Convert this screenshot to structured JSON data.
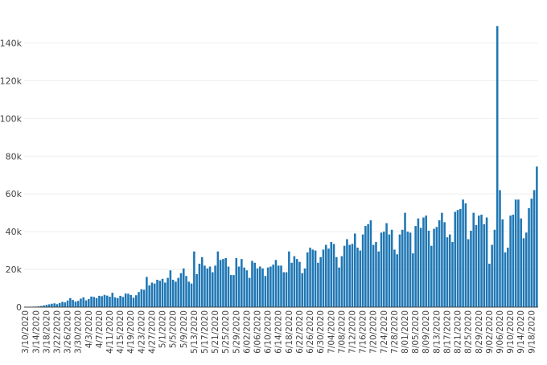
{
  "chart_data": {
    "type": "bar",
    "title": "",
    "xlabel": "",
    "ylabel": "",
    "ylim": [
      0,
      150000
    ],
    "grid": true,
    "legend": "none",
    "bar_color": "#1f77b4",
    "grid_color": "#eeeeee",
    "y_ticks": [
      {
        "value": 0,
        "label": "0"
      },
      {
        "value": 20000,
        "label": "20k"
      },
      {
        "value": 40000,
        "label": "40k"
      },
      {
        "value": 60000,
        "label": "60k"
      },
      {
        "value": 80000,
        "label": "80k"
      },
      {
        "value": 100000,
        "label": "100k"
      },
      {
        "value": 120000,
        "label": "120k"
      },
      {
        "value": 140000,
        "label": "140k"
      }
    ],
    "x_tick_labels": [
      "3/10/2020",
      "3/14/2020",
      "3/18/2020",
      "3/22/2020",
      "3/26/2020",
      "3/30/2020",
      "4/3/2020",
      "4/7/2020",
      "4/11/2020",
      "4/15/2020",
      "4/19/2020",
      "4/23/2020",
      "4/27/2020",
      "5/1/2020",
      "5/5/2020",
      "5/9/2020",
      "5/13/2020",
      "5/17/2020",
      "5/21/2020",
      "5/25/2020",
      "5/29/2020",
      "6/02/2020",
      "6/06/2020",
      "6/10/2020",
      "6/14/2020",
      "6/18/2020",
      "6/22/2020",
      "6/26/2020",
      "6/30/2020",
      "7/04/2020",
      "7/08/2020",
      "7/12/2020",
      "7/16/2020",
      "7/20/2020",
      "7/24/2020",
      "7/28/2020",
      "8/01/2020",
      "8/05/2020",
      "8/09/2020",
      "8/13/2020",
      "8/17/2020",
      "8/21/2020",
      "8/25/2020",
      "8/29/2020",
      "9/02/2020",
      "9/06/2020",
      "9/10/2020",
      "9/14/2020",
      "9/18/2020"
    ],
    "x": [
      "2020-03-10",
      "2020-03-11",
      "2020-03-12",
      "2020-03-13",
      "2020-03-14",
      "2020-03-15",
      "2020-03-16",
      "2020-03-17",
      "2020-03-18",
      "2020-03-19",
      "2020-03-20",
      "2020-03-21",
      "2020-03-22",
      "2020-03-23",
      "2020-03-24",
      "2020-03-25",
      "2020-03-26",
      "2020-03-27",
      "2020-03-28",
      "2020-03-29",
      "2020-03-30",
      "2020-03-31",
      "2020-04-01",
      "2020-04-02",
      "2020-04-03",
      "2020-04-04",
      "2020-04-05",
      "2020-04-06",
      "2020-04-07",
      "2020-04-08",
      "2020-04-09",
      "2020-04-10",
      "2020-04-11",
      "2020-04-12",
      "2020-04-13",
      "2020-04-14",
      "2020-04-15",
      "2020-04-16",
      "2020-04-17",
      "2020-04-18",
      "2020-04-19",
      "2020-04-20",
      "2020-04-21",
      "2020-04-22",
      "2020-04-23",
      "2020-04-24",
      "2020-04-25",
      "2020-04-26",
      "2020-04-27",
      "2020-04-28",
      "2020-04-29",
      "2020-04-30",
      "2020-05-01",
      "2020-05-02",
      "2020-05-03",
      "2020-05-04",
      "2020-05-05",
      "2020-05-06",
      "2020-05-07",
      "2020-05-08",
      "2020-05-09",
      "2020-05-10",
      "2020-05-11",
      "2020-05-12",
      "2020-05-13",
      "2020-05-14",
      "2020-05-15",
      "2020-05-16",
      "2020-05-17",
      "2020-05-18",
      "2020-05-19",
      "2020-05-20",
      "2020-05-21",
      "2020-05-22",
      "2020-05-23",
      "2020-05-24",
      "2020-05-25",
      "2020-05-26",
      "2020-05-27",
      "2020-05-28",
      "2020-05-29",
      "2020-05-30",
      "2020-05-31",
      "2020-06-01",
      "2020-06-02",
      "2020-06-03",
      "2020-06-04",
      "2020-06-05",
      "2020-06-06",
      "2020-06-07",
      "2020-06-08",
      "2020-06-09",
      "2020-06-10",
      "2020-06-11",
      "2020-06-12",
      "2020-06-13",
      "2020-06-14",
      "2020-06-15",
      "2020-06-16",
      "2020-06-17",
      "2020-06-18",
      "2020-06-19",
      "2020-06-20",
      "2020-06-21",
      "2020-06-22",
      "2020-06-23",
      "2020-06-24",
      "2020-06-25",
      "2020-06-26",
      "2020-06-27",
      "2020-06-28",
      "2020-06-29",
      "2020-06-30",
      "2020-07-01",
      "2020-07-02",
      "2020-07-03",
      "2020-07-04",
      "2020-07-05",
      "2020-07-06",
      "2020-07-07",
      "2020-07-08",
      "2020-07-09",
      "2020-07-10",
      "2020-07-11",
      "2020-07-12",
      "2020-07-13",
      "2020-07-14",
      "2020-07-15",
      "2020-07-16",
      "2020-07-17",
      "2020-07-18",
      "2020-07-19",
      "2020-07-20",
      "2020-07-21",
      "2020-07-22",
      "2020-07-23",
      "2020-07-24",
      "2020-07-25",
      "2020-07-26",
      "2020-07-27",
      "2020-07-28",
      "2020-07-29",
      "2020-07-30",
      "2020-07-31",
      "2020-08-01",
      "2020-08-02",
      "2020-08-03",
      "2020-08-04",
      "2020-08-05",
      "2020-08-06",
      "2020-08-07",
      "2020-08-08",
      "2020-08-09",
      "2020-08-10",
      "2020-08-11",
      "2020-08-12",
      "2020-08-13",
      "2020-08-14",
      "2020-08-15",
      "2020-08-16",
      "2020-08-17",
      "2020-08-18",
      "2020-08-19",
      "2020-08-20",
      "2020-08-21",
      "2020-08-22",
      "2020-08-23",
      "2020-08-24",
      "2020-08-25",
      "2020-08-26",
      "2020-08-27",
      "2020-08-28",
      "2020-08-29",
      "2020-08-30",
      "2020-08-31",
      "2020-09-01",
      "2020-09-02",
      "2020-09-03",
      "2020-09-04",
      "2020-09-05",
      "2020-09-06",
      "2020-09-07",
      "2020-09-08",
      "2020-09-09",
      "2020-09-10",
      "2020-09-11",
      "2020-09-12",
      "2020-09-13",
      "2020-09-14",
      "2020-09-15",
      "2020-09-16",
      "2020-09-17",
      "2020-09-18",
      "2020-09-19",
      "2020-09-20"
    ],
    "values": [
      100,
      150,
      200,
      250,
      300,
      400,
      600,
      900,
      1200,
      1500,
      1800,
      2000,
      1600,
      2200,
      2800,
      2500,
      3500,
      4800,
      3800,
      2900,
      3300,
      4500,
      5200,
      3600,
      4300,
      5600,
      5400,
      4800,
      6000,
      5800,
      6500,
      6100,
      5500,
      7600,
      5200,
      4800,
      6000,
      5400,
      7200,
      7100,
      6400,
      5000,
      6300,
      8000,
      9500,
      9200,
      16000,
      11500,
      13000,
      12500,
      14500,
      14000,
      15000,
      13000,
      15500,
      19500,
      14500,
      13500,
      15500,
      18000,
      20500,
      16500,
      13500,
      12500,
      29500,
      17500,
      23000,
      26500,
      22000,
      20500,
      21500,
      18500,
      22000,
      29500,
      25000,
      25500,
      26000,
      21500,
      17000,
      17000,
      26000,
      21500,
      25500,
      21000,
      19500,
      15500,
      24500,
      23500,
      20500,
      21500,
      20500,
      16500,
      21000,
      21500,
      22500,
      25000,
      22000,
      22000,
      18500,
      18500,
      29500,
      23500,
      27000,
      25500,
      24000,
      18000,
      20500,
      29000,
      31500,
      30500,
      30000,
      23500,
      26500,
      30500,
      33000,
      31000,
      34500,
      33500,
      26500,
      21000,
      27000,
      32500,
      36000,
      33000,
      33500,
      39000,
      31500,
      30000,
      38500,
      43000,
      44000,
      46000,
      33000,
      34500,
      29500,
      39500,
      40000,
      44500,
      38500,
      41000,
      30500,
      28000,
      38500,
      41000,
      50000,
      40000,
      39500,
      28500,
      43000,
      47000,
      42000,
      47500,
      48500,
      40500,
      32500,
      41500,
      42500,
      46000,
      50000,
      45000,
      37000,
      38500,
      34500,
      50500,
      51500,
      52000,
      57000,
      55000,
      36000,
      40500,
      50000,
      43500,
      48500,
      49000,
      44000,
      47500,
      23000,
      33000,
      41000,
      149000,
      62000,
      46500,
      29000,
      31500,
      48500,
      49000,
      57000,
      57000,
      47000,
      36500,
      39500,
      52500,
      57500,
      62000,
      74500
    ]
  }
}
